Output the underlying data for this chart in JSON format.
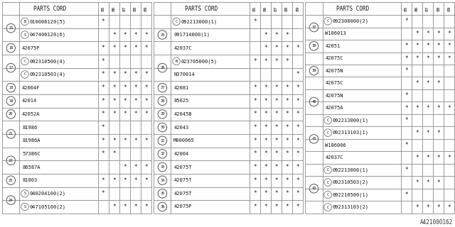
{
  "bg_color": "#ffffff",
  "line_color": "#888888",
  "text_color": "#222222",
  "title_text": "A421000162",
  "panel1": {
    "rows": [
      {
        "ref": "15",
        "prefix": "B",
        "code": "010006120(5)",
        "marks": [
          1,
          0,
          0,
          0,
          0
        ]
      },
      {
        "ref": "15",
        "prefix": "S",
        "code": "047406120(6)",
        "marks": [
          0,
          1,
          1,
          1,
          1
        ]
      },
      {
        "ref": "16",
        "prefix": "",
        "code": "42075P",
        "marks": [
          1,
          1,
          1,
          1,
          1
        ]
      },
      {
        "ref": "17",
        "prefix": "C",
        "code": "092310500(4)",
        "marks": [
          1,
          0,
          0,
          0,
          0
        ]
      },
      {
        "ref": "17",
        "prefix": "C",
        "code": "092310503(4)",
        "marks": [
          1,
          1,
          1,
          1,
          1
        ]
      },
      {
        "ref": "18",
        "prefix": "",
        "code": "42064F",
        "marks": [
          1,
          1,
          1,
          1,
          1
        ]
      },
      {
        "ref": "19",
        "prefix": "",
        "code": "42014",
        "marks": [
          1,
          1,
          1,
          1,
          1
        ]
      },
      {
        "ref": "20",
        "prefix": "",
        "code": "42052A",
        "marks": [
          1,
          1,
          1,
          1,
          1
        ]
      },
      {
        "ref": "21",
        "prefix": "",
        "code": "81986",
        "marks": [
          1,
          0,
          0,
          0,
          0
        ]
      },
      {
        "ref": "21",
        "prefix": "",
        "code": "81986A",
        "marks": [
          1,
          1,
          1,
          1,
          1
        ]
      },
      {
        "ref": "22",
        "prefix": "",
        "code": "57386C",
        "marks": [
          1,
          1,
          0,
          0,
          0
        ]
      },
      {
        "ref": "22",
        "prefix": "",
        "code": "86587A",
        "marks": [
          0,
          0,
          1,
          1,
          1
        ]
      },
      {
        "ref": "23",
        "prefix": "",
        "code": "81803",
        "marks": [
          1,
          1,
          1,
          1,
          1
        ]
      },
      {
        "ref": "24",
        "prefix": "S",
        "code": "040204100(2)",
        "marks": [
          1,
          0,
          0,
          0,
          0
        ]
      },
      {
        "ref": "24",
        "prefix": "S",
        "code": "047105100(2)",
        "marks": [
          0,
          1,
          1,
          1,
          1
        ]
      }
    ]
  },
  "panel2": {
    "rows": [
      {
        "ref": "25",
        "prefix": "C",
        "code": "092213000(1)",
        "marks": [
          1,
          0,
          0,
          0,
          0
        ]
      },
      {
        "ref": "25",
        "prefix": "",
        "code": "091714000(1)",
        "marks": [
          0,
          1,
          1,
          1,
          0
        ]
      },
      {
        "ref": "25",
        "prefix": "",
        "code": "42037C",
        "marks": [
          0,
          1,
          1,
          1,
          1
        ]
      },
      {
        "ref": "26",
        "prefix": "N",
        "code": "023705000(5)",
        "marks": [
          1,
          1,
          1,
          1,
          0
        ]
      },
      {
        "ref": "26",
        "prefix": "",
        "code": "N370014",
        "marks": [
          0,
          0,
          0,
          0,
          1
        ]
      },
      {
        "ref": "27",
        "prefix": "",
        "code": "42081",
        "marks": [
          1,
          1,
          1,
          1,
          1
        ]
      },
      {
        "ref": "28",
        "prefix": "",
        "code": "85025",
        "marks": [
          1,
          1,
          1,
          1,
          1
        ]
      },
      {
        "ref": "29",
        "prefix": "",
        "code": "42045B",
        "marks": [
          1,
          1,
          1,
          1,
          1
        ]
      },
      {
        "ref": "30",
        "prefix": "",
        "code": "42043",
        "marks": [
          1,
          1,
          1,
          1,
          1
        ]
      },
      {
        "ref": "31",
        "prefix": "",
        "code": "M000065",
        "marks": [
          1,
          1,
          1,
          1,
          1
        ]
      },
      {
        "ref": "32",
        "prefix": "",
        "code": "42004",
        "marks": [
          1,
          1,
          1,
          1,
          1
        ]
      },
      {
        "ref": "33",
        "prefix": "",
        "code": "42075T",
        "marks": [
          1,
          1,
          1,
          1,
          1
        ]
      },
      {
        "ref": "34",
        "prefix": "",
        "code": "42075T",
        "marks": [
          1,
          1,
          1,
          1,
          1
        ]
      },
      {
        "ref": "35",
        "prefix": "",
        "code": "42075T",
        "marks": [
          1,
          1,
          1,
          1,
          1
        ]
      },
      {
        "ref": "36",
        "prefix": "",
        "code": "42075P",
        "marks": [
          1,
          1,
          1,
          1,
          1
        ]
      }
    ]
  },
  "panel3": {
    "rows": [
      {
        "ref": "37",
        "prefix": "C",
        "code": "092308000(2)",
        "marks": [
          1,
          0,
          0,
          0,
          0
        ]
      },
      {
        "ref": "37",
        "prefix": "",
        "code": "W186013",
        "marks": [
          0,
          1,
          1,
          1,
          1
        ]
      },
      {
        "ref": "38",
        "prefix": "",
        "code": "42051",
        "marks": [
          1,
          1,
          1,
          1,
          1
        ]
      },
      {
        "ref": "39",
        "prefix": "",
        "code": "42075C",
        "marks": [
          1,
          1,
          1,
          1,
          1
        ]
      },
      {
        "ref": "39",
        "prefix": "",
        "code": "42075N",
        "marks": [
          1,
          0,
          0,
          0,
          0
        ]
      },
      {
        "ref": "39",
        "prefix": "",
        "code": "42075C",
        "marks": [
          0,
          1,
          1,
          1,
          0
        ]
      },
      {
        "ref": "40",
        "prefix": "",
        "code": "42075N",
        "marks": [
          1,
          0,
          0,
          0,
          0
        ]
      },
      {
        "ref": "40",
        "prefix": "",
        "code": "42075A",
        "marks": [
          1,
          1,
          1,
          1,
          1
        ]
      },
      {
        "ref": "41",
        "prefix": "C",
        "code": "092213000(1)",
        "marks": [
          1,
          0,
          0,
          0,
          0
        ]
      },
      {
        "ref": "41",
        "prefix": "C",
        "code": "092313103(1)",
        "marks": [
          0,
          1,
          1,
          1,
          0
        ]
      },
      {
        "ref": "41",
        "prefix": "",
        "code": "W186006",
        "marks": [
          1,
          0,
          0,
          0,
          0
        ]
      },
      {
        "ref": "41",
        "prefix": "",
        "code": "42037C",
        "marks": [
          0,
          1,
          1,
          1,
          1
        ]
      },
      {
        "ref": "42",
        "prefix": "C",
        "code": "092213000(1)",
        "marks": [
          1,
          0,
          0,
          0,
          0
        ]
      },
      {
        "ref": "42",
        "prefix": "C",
        "code": "092310503(2)",
        "marks": [
          0,
          1,
          1,
          1,
          0
        ]
      },
      {
        "ref": "42",
        "prefix": "C",
        "code": "092210500(1)",
        "marks": [
          1,
          0,
          0,
          0,
          0
        ]
      },
      {
        "ref": "42",
        "prefix": "C",
        "code": "092313103(2)",
        "marks": [
          0,
          1,
          1,
          1,
          1
        ]
      }
    ]
  }
}
